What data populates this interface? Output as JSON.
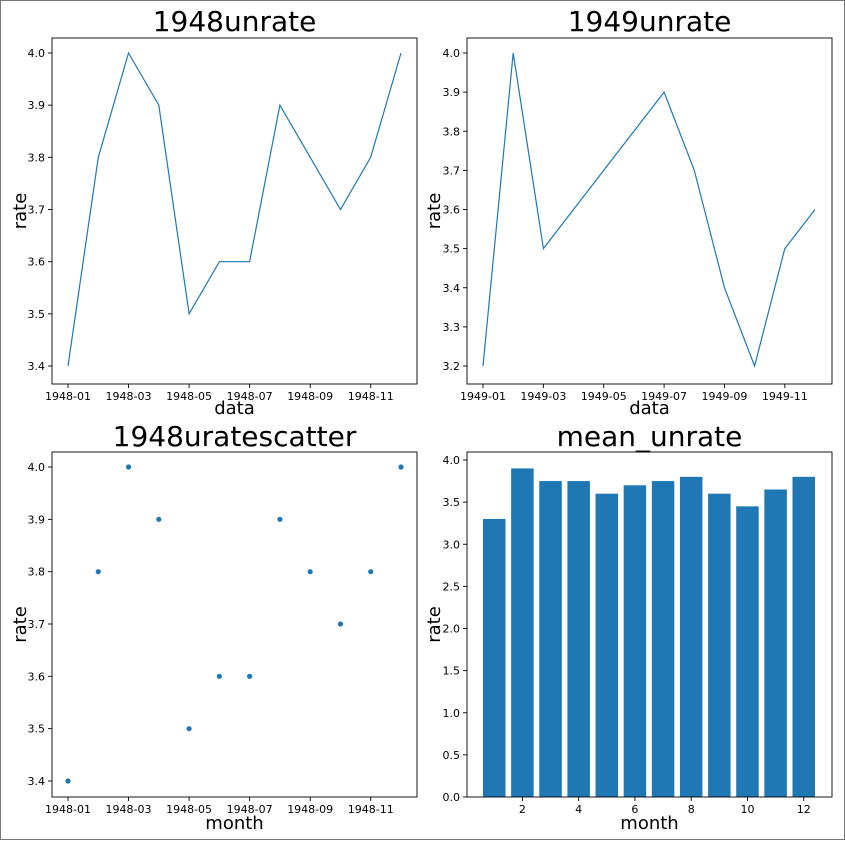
{
  "chart_data": [
    {
      "type": "line",
      "title": "1948unrate",
      "xlabel": "data",
      "ylabel": "rate",
      "x": [
        "1948-01",
        "1948-02",
        "1948-03",
        "1948-04",
        "1948-05",
        "1948-06",
        "1948-07",
        "1948-08",
        "1948-09",
        "1948-10",
        "1948-11",
        "1948-12"
      ],
      "values": [
        3.4,
        3.8,
        4.0,
        3.9,
        3.5,
        3.6,
        3.6,
        3.9,
        3.8,
        3.7,
        3.8,
        4.0
      ],
      "xticks": [
        "1948-01",
        "1948-03",
        "1948-05",
        "1948-07",
        "1948-09",
        "1948-11"
      ],
      "yticks": [
        "3.4",
        "3.5",
        "3.6",
        "3.7",
        "3.8",
        "3.9",
        "4.0"
      ],
      "ylim": [
        3.4,
        4.0
      ],
      "color": "#1f77b4",
      "grid": false
    },
    {
      "type": "line",
      "title": "1949unrate",
      "xlabel": "data",
      "ylabel": "rate",
      "x": [
        "1949-01",
        "1949-02",
        "1949-03",
        "1949-04",
        "1949-05",
        "1949-06",
        "1949-07",
        "1949-08",
        "1949-09",
        "1949-10",
        "1949-11",
        "1949-12"
      ],
      "values": [
        3.2,
        4.0,
        3.5,
        3.6,
        3.7,
        3.8,
        3.9,
        3.7,
        3.4,
        3.2,
        3.5,
        3.6
      ],
      "xticks": [
        "1949-01",
        "1949-03",
        "1949-05",
        "1949-07",
        "1949-09",
        "1949-11"
      ],
      "yticks": [
        "3.2",
        "3.3",
        "3.4",
        "3.5",
        "3.6",
        "3.7",
        "3.8",
        "3.9",
        "4.0"
      ],
      "ylim": [
        3.2,
        4.0
      ],
      "color": "#1f77b4",
      "grid": false
    },
    {
      "type": "scatter",
      "title": "1948uratescatter",
      "xlabel": "month",
      "ylabel": "rate",
      "x": [
        "1948-01",
        "1948-02",
        "1948-03",
        "1948-04",
        "1948-05",
        "1948-06",
        "1948-07",
        "1948-08",
        "1948-09",
        "1948-10",
        "1948-11",
        "1948-12"
      ],
      "values": [
        3.4,
        3.8,
        4.0,
        3.9,
        3.5,
        3.6,
        3.6,
        3.9,
        3.8,
        3.7,
        3.8,
        4.0
      ],
      "xticks": [
        "1948-01",
        "1948-03",
        "1948-05",
        "1948-07",
        "1948-09",
        "1948-11"
      ],
      "yticks": [
        "3.4",
        "3.5",
        "3.6",
        "3.7",
        "3.8",
        "3.9",
        "4.0"
      ],
      "ylim": [
        3.4,
        4.0
      ],
      "color": "#1f77b4",
      "grid": false
    },
    {
      "type": "bar",
      "title": "mean_unrate",
      "xlabel": "month",
      "ylabel": "rate",
      "categories": [
        1,
        2,
        3,
        4,
        5,
        6,
        7,
        8,
        9,
        10,
        11,
        12
      ],
      "values": [
        3.3,
        3.9,
        3.75,
        3.75,
        3.6,
        3.7,
        3.75,
        3.8,
        3.6,
        3.45,
        3.65,
        3.8
      ],
      "xticks": [
        "2",
        "4",
        "6",
        "8",
        "10",
        "12"
      ],
      "yticks": [
        "0.0",
        "0.5",
        "1.0",
        "1.5",
        "2.0",
        "2.5",
        "3.0",
        "3.5",
        "4.0"
      ],
      "ylim": [
        0,
        4.0
      ],
      "color": "#1f77b4",
      "grid": false
    }
  ]
}
